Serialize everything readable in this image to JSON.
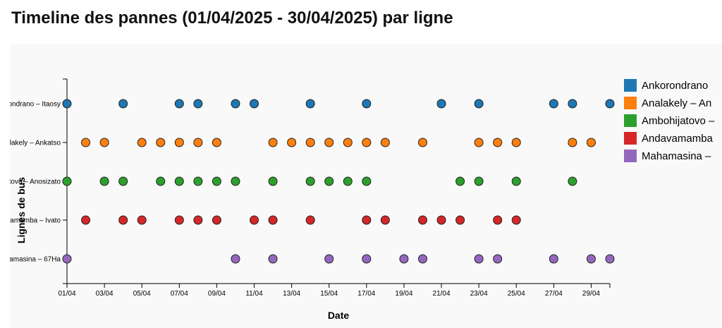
{
  "page": {
    "title": "Timeline des pannes (01/04/2025 - 30/04/2025) par ligne"
  },
  "chart_data": {
    "type": "scatter",
    "title": "Timeline des pannes (01/04/2025 - 30/04/2025) par ligne",
    "xlabel": "Date",
    "ylabel": "Lignes de bus",
    "xlim": [
      "2025-04-01",
      "2025-04-30"
    ],
    "x_tick_labels": [
      "01/04",
      "03/04",
      "05/04",
      "07/04",
      "09/04",
      "11/04",
      "13/04",
      "15/04",
      "17/04",
      "19/04",
      "21/04",
      "23/04",
      "25/04",
      "27/04",
      "29/04"
    ],
    "y_tick_labels": [
      "ondrano – Itaosy",
      "lakely – Ankatso",
      "tovo – Anosizato",
      "amamba – Ivato",
      "amasina – 67Ha"
    ],
    "legend_placement": "right",
    "grid": false,
    "series": [
      {
        "name": "Ankorondrano",
        "color": "#1f77b4",
        "days": [
          1,
          4,
          7,
          8,
          10,
          11,
          14,
          17,
          21,
          23,
          27,
          28,
          30
        ]
      },
      {
        "name": "Analakely – An",
        "color": "#ff7f0e",
        "days": [
          2,
          3,
          5,
          6,
          7,
          8,
          9,
          12,
          13,
          14,
          15,
          16,
          17,
          18,
          20,
          23,
          24,
          25,
          28,
          29
        ]
      },
      {
        "name": "Ambohijatovo –",
        "color": "#2ca02c",
        "days": [
          1,
          3,
          4,
          6,
          7,
          8,
          9,
          10,
          12,
          14,
          15,
          16,
          17,
          22,
          23,
          25,
          28
        ]
      },
      {
        "name": "Andavamamba",
        "color": "#d62728",
        "days": [
          2,
          4,
          5,
          7,
          8,
          9,
          11,
          12,
          14,
          17,
          18,
          20,
          21,
          22,
          24,
          25
        ]
      },
      {
        "name": "Mahamasina –",
        "color": "#9467bd",
        "days": [
          1,
          10,
          12,
          15,
          17,
          19,
          20,
          23,
          24,
          27,
          29,
          30
        ]
      }
    ]
  }
}
